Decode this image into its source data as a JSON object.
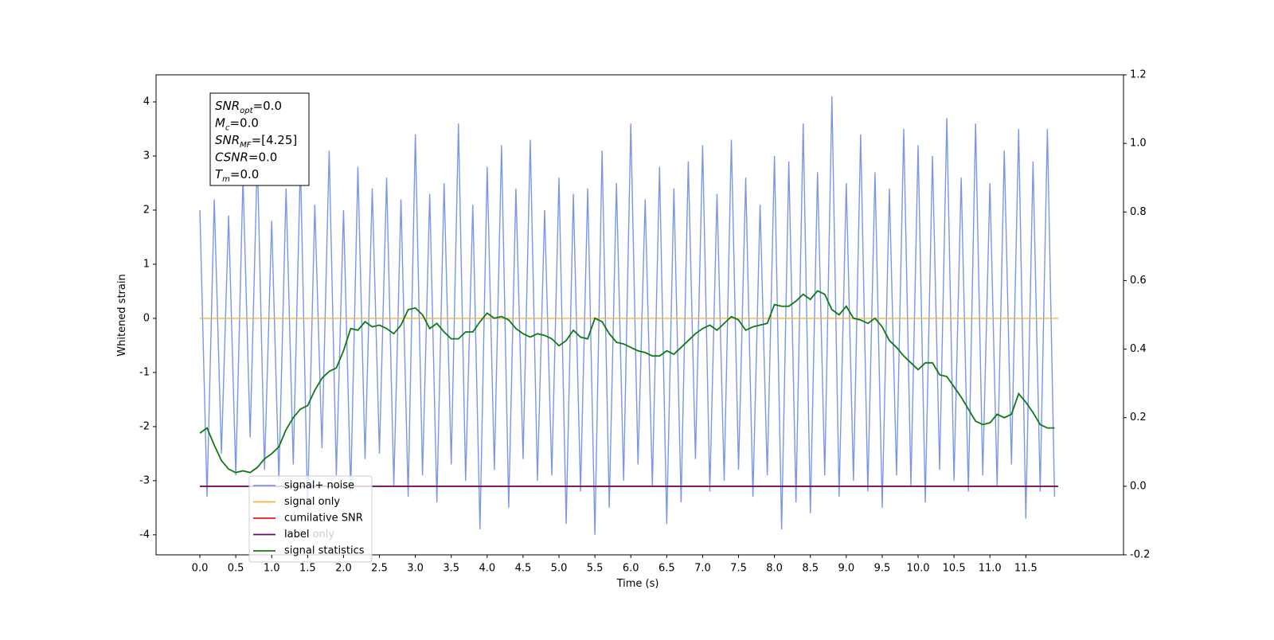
{
  "chart_data": {
    "type": "line",
    "xlabel": "Time (s)",
    "ylabel": "Whitened strain",
    "xlim": [
      -0.61,
      12.86
    ],
    "ylim": [
      -4.37,
      4.5
    ],
    "y2lim": [
      -0.2,
      1.2
    ],
    "xticks": [
      {
        "value": 0,
        "label": "0.0"
      },
      0.5,
      {
        "value": 1,
        "label": "1.0"
      },
      1.5,
      {
        "value": 2,
        "label": "2.0"
      },
      2.5,
      {
        "value": 3,
        "label": "3.0"
      },
      3.5,
      {
        "value": 4,
        "label": "4.0"
      },
      4.5,
      {
        "value": 5,
        "label": "5.0"
      },
      5.5,
      {
        "value": 6,
        "label": "6.0"
      },
      6.5,
      {
        "value": 7,
        "label": "7.0"
      },
      7.5,
      {
        "value": 8,
        "label": "8.0"
      },
      8.5,
      {
        "value": 9,
        "label": "9.0"
      },
      9.5,
      {
        "value": 10,
        "label": "10.0"
      },
      10.5,
      {
        "value": 11,
        "label": "11.0"
      },
      11.5
    ],
    "yticks": [
      -4,
      -3,
      -2,
      -1,
      0,
      1,
      2,
      3,
      4
    ],
    "y2ticks": [
      -0.2,
      {
        "value": 0,
        "label": "0.0"
      },
      0.2,
      0.4,
      0.6,
      0.8,
      {
        "value": 1,
        "label": "1.0"
      },
      1.2
    ],
    "x": [
      0,
      0.1,
      0.2,
      0.3,
      0.4,
      0.5,
      0.6,
      0.7,
      0.8,
      0.9,
      1,
      1.1,
      1.2,
      1.3,
      1.4,
      1.5,
      1.6,
      1.7,
      1.8,
      1.9,
      2,
      2.1,
      2.2,
      2.3,
      2.4,
      2.5,
      2.6,
      2.7,
      2.8,
      2.9,
      3,
      3.1,
      3.2,
      3.3,
      3.4,
      3.5,
      3.6,
      3.7,
      3.8,
      3.9,
      4,
      4.1,
      4.2,
      4.3,
      4.4,
      4.5,
      4.6,
      4.7,
      4.8,
      4.9,
      5,
      5.1,
      5.2,
      5.3,
      5.4,
      5.5,
      5.6,
      5.7,
      5.8,
      5.9,
      6,
      6.1,
      6.2,
      6.3,
      6.4,
      6.5,
      6.6,
      6.7,
      6.8,
      6.9,
      7,
      7.1,
      7.2,
      7.3,
      7.4,
      7.5,
      7.6,
      7.7,
      7.8,
      7.9,
      8,
      8.1,
      8.2,
      8.3,
      8.4,
      8.5,
      8.6,
      8.7,
      8.8,
      8.9,
      9,
      9.1,
      9.2,
      9.3,
      9.4,
      9.5,
      9.6,
      9.7,
      9.8,
      9.9,
      10,
      10.1,
      10.2,
      10.3,
      10.4,
      10.5,
      10.6,
      10.7,
      10.8,
      10.9,
      11,
      11.1,
      11.2,
      11.3,
      11.4,
      11.5,
      11.6,
      11.7,
      11.8,
      11.9
    ],
    "series": [
      {
        "name": "signal+ noise",
        "color": "#7b96e8",
        "values": [
          2.0,
          -3.3,
          2.2,
          -2.5,
          1.9,
          -2.9,
          2.6,
          -2.2,
          3.0,
          -2.8,
          1.8,
          -3.0,
          2.4,
          -2.7,
          2.9,
          -3.5,
          2.1,
          -2.4,
          3.1,
          -2.9,
          2.0,
          -3.2,
          2.8,
          -2.6,
          2.4,
          -2.5,
          2.6,
          -3.1,
          2.2,
          -3.3,
          3.4,
          -2.9,
          2.3,
          -3.4,
          2.5,
          -2.7,
          3.6,
          -3.0,
          2.1,
          -3.9,
          2.8,
          -2.8,
          3.2,
          -3.5,
          2.4,
          -2.6,
          3.3,
          -3.0,
          2.0,
          -2.9,
          2.6,
          -3.8,
          2.3,
          -3.2,
          2.4,
          -4.0,
          3.1,
          -3.5,
          2.5,
          -3.0,
          3.6,
          -2.7,
          2.2,
          -3.1,
          2.8,
          -3.8,
          2.4,
          -3.4,
          2.9,
          -2.6,
          3.2,
          -3.2,
          2.3,
          -3.0,
          3.3,
          -2.8,
          2.6,
          -3.3,
          2.1,
          -2.9,
          3.0,
          -3.9,
          2.9,
          -3.4,
          3.6,
          -3.6,
          2.7,
          -2.9,
          4.1,
          -3.3,
          2.5,
          -3.0,
          3.4,
          -3.2,
          2.7,
          -3.5,
          2.4,
          -2.9,
          3.5,
          -3.1,
          3.2,
          -3.4,
          3.0,
          -2.8,
          3.7,
          -3.0,
          2.6,
          -3.2,
          3.6,
          -2.9,
          2.5,
          -3.1,
          3.1,
          -2.7,
          3.5,
          -3.7,
          2.9,
          -3.2,
          3.5,
          -3.3
        ]
      },
      {
        "name": "signal only",
        "color": "#f5b041",
        "x": [
          0,
          11.95
        ],
        "values": [
          0,
          0
        ]
      },
      {
        "name": "cumilative SNR",
        "color": "#e41a1c",
        "axis": "y2",
        "x": [
          0,
          11.95
        ],
        "values": [
          0,
          0
        ]
      },
      {
        "name": "label",
        "color": "#6a0a6a",
        "axis": "y2",
        "x": [
          0,
          11.95
        ],
        "values": [
          0,
          0
        ]
      },
      {
        "name": "signal statistics",
        "color": "#0f7a0f",
        "axis": "y2",
        "values": [
          0.155,
          0.17,
          0.12,
          0.075,
          0.05,
          0.04,
          0.045,
          0.04,
          0.055,
          0.08,
          0.095,
          0.115,
          0.165,
          0.2,
          0.225,
          0.235,
          0.28,
          0.315,
          0.335,
          0.345,
          0.395,
          0.46,
          0.455,
          0.48,
          0.465,
          0.47,
          0.46,
          0.445,
          0.47,
          0.515,
          0.52,
          0.5,
          0.46,
          0.475,
          0.45,
          0.43,
          0.43,
          0.45,
          0.45,
          0.48,
          0.505,
          0.49,
          0.495,
          0.485,
          0.46,
          0.445,
          0.435,
          0.445,
          0.44,
          0.43,
          0.41,
          0.425,
          0.455,
          0.435,
          0.43,
          0.49,
          0.48,
          0.445,
          0.42,
          0.415,
          0.405,
          0.395,
          0.39,
          0.38,
          0.38,
          0.395,
          0.385,
          0.405,
          0.425,
          0.445,
          0.46,
          0.47,
          0.455,
          0.475,
          0.495,
          0.485,
          0.455,
          0.465,
          0.47,
          0.475,
          0.53,
          0.525,
          0.525,
          0.54,
          0.56,
          0.545,
          0.57,
          0.56,
          0.515,
          0.5,
          0.525,
          0.49,
          0.485,
          0.475,
          0.49,
          0.465,
          0.425,
          0.405,
          0.38,
          0.36,
          0.34,
          0.36,
          0.36,
          0.325,
          0.32,
          0.29,
          0.26,
          0.225,
          0.19,
          0.18,
          0.185,
          0.21,
          0.2,
          0.21,
          0.27,
          0.245,
          0.215,
          0.18,
          0.17,
          0.17
        ]
      }
    ],
    "legend_overlay_text": "label only",
    "annotation": [
      {
        "base": "SNR",
        "sub": "opt",
        "text": "=0.0"
      },
      {
        "base": "M",
        "sub": "c",
        "text": "=0.0"
      },
      {
        "base": "SNR",
        "sub": "MF",
        "text": "=[4.25]"
      },
      {
        "base": "CSNR",
        "text": "=0.0"
      },
      {
        "base": "T",
        "sub": "m",
        "text": "=0.0"
      }
    ]
  }
}
